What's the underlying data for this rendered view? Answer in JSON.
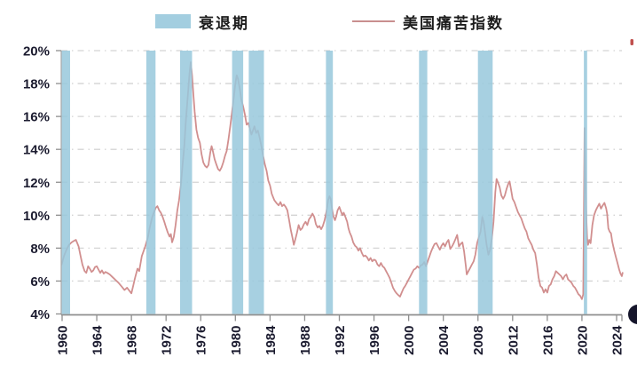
{
  "legend": {
    "recession_label": "衰退期",
    "series_label": "美国痛苦指数"
  },
  "colors": {
    "band": "#98c8dc",
    "band_opacity": 0.85,
    "line": "#d18f8f",
    "grid": "#d4d4d4",
    "axis": "#8f8f8f",
    "tick_text": "#1b1b2f",
    "top_right_clipped_mark": "#c0504d",
    "bottom_right_clipped_dot": "#15152b"
  },
  "chart_data": {
    "type": "line",
    "legend_position": "top-center",
    "grid": {
      "style": "dash-dot",
      "direction": "horizontal",
      "color": "#d4d4d4"
    },
    "x_axis": {
      "range": [
        1959.9,
        2024.8
      ],
      "tick_values": [
        1960,
        1964,
        1968,
        1972,
        1976,
        1980,
        1984,
        1988,
        1992,
        1996,
        2000,
        2004,
        2008,
        2012,
        2016,
        2020,
        2024
      ],
      "tick_labels": [
        "1960",
        "1964",
        "1968",
        "1972",
        "1976",
        "1980",
        "1984",
        "1988",
        "1992",
        "1996",
        "2000",
        "2004",
        "2008",
        "2012",
        "2016",
        "2020",
        "2024"
      ],
      "label_rotation_deg": -90
    },
    "y_axis": {
      "range": [
        4,
        20
      ],
      "unit": "%",
      "tick_values": [
        20,
        18,
        16,
        14,
        12,
        10,
        8,
        6,
        4
      ],
      "tick_labels": [
        "20%",
        "18%",
        "16%",
        "14%",
        "12%",
        "10%",
        "8%",
        "6%",
        "4%"
      ]
    },
    "recession_bands": {
      "label": "衰退期",
      "color": "#98c8dc",
      "intervals": [
        [
          1959.92,
          1960.92
        ],
        [
          1969.72,
          1970.78
        ],
        [
          1973.62,
          1975.0
        ],
        [
          1979.62,
          1980.9
        ],
        [
          1981.55,
          1983.3
        ],
        [
          1990.45,
          1991.25
        ],
        [
          2001.2,
          2002.15
        ],
        [
          2008.0,
          2009.7
        ],
        [
          2020.22,
          2020.6
        ]
      ]
    },
    "series": {
      "name": "美国痛苦指数",
      "color": "#d18f8f",
      "points": [
        [
          1959.95,
          7.0
        ],
        [
          1960.2,
          7.5
        ],
        [
          1960.5,
          7.9
        ],
        [
          1960.8,
          8.2
        ],
        [
          1961.1,
          8.35
        ],
        [
          1961.4,
          8.45
        ],
        [
          1961.6,
          8.5
        ],
        [
          1961.9,
          8.1
        ],
        [
          1962.1,
          7.6
        ],
        [
          1962.35,
          7.0
        ],
        [
          1962.6,
          6.6
        ],
        [
          1962.8,
          6.5
        ],
        [
          1963.0,
          6.9
        ],
        [
          1963.2,
          6.75
        ],
        [
          1963.4,
          6.55
        ],
        [
          1963.6,
          6.65
        ],
        [
          1963.8,
          6.85
        ],
        [
          1964.0,
          6.9
        ],
        [
          1964.2,
          6.7
        ],
        [
          1964.4,
          6.5
        ],
        [
          1964.6,
          6.65
        ],
        [
          1964.8,
          6.45
        ],
        [
          1965.0,
          6.55
        ],
        [
          1965.2,
          6.5
        ],
        [
          1965.5,
          6.4
        ],
        [
          1965.8,
          6.25
        ],
        [
          1966.0,
          6.15
        ],
        [
          1966.2,
          6.05
        ],
        [
          1966.5,
          5.9
        ],
        [
          1966.9,
          5.65
        ],
        [
          1967.2,
          5.45
        ],
        [
          1967.5,
          5.6
        ],
        [
          1967.7,
          5.45
        ],
        [
          1968.0,
          5.25
        ],
        [
          1968.2,
          5.7
        ],
        [
          1968.4,
          6.15
        ],
        [
          1968.7,
          6.75
        ],
        [
          1968.9,
          6.6
        ],
        [
          1969.2,
          7.5
        ],
        [
          1969.6,
          8.1
        ],
        [
          1969.9,
          8.65
        ],
        [
          1970.1,
          9.2
        ],
        [
          1970.4,
          9.9
        ],
        [
          1970.8,
          10.45
        ],
        [
          1971.0,
          10.55
        ],
        [
          1971.2,
          10.3
        ],
        [
          1971.4,
          10.15
        ],
        [
          1971.6,
          9.9
        ],
        [
          1971.8,
          9.6
        ],
        [
          1972.0,
          9.25
        ],
        [
          1972.2,
          8.95
        ],
        [
          1972.4,
          8.7
        ],
        [
          1972.55,
          8.85
        ],
        [
          1972.7,
          8.35
        ],
        [
          1972.9,
          8.7
        ],
        [
          1973.1,
          9.4
        ],
        [
          1973.3,
          10.3
        ],
        [
          1973.5,
          10.9
        ],
        [
          1973.7,
          11.8
        ],
        [
          1973.9,
          13.0
        ],
        [
          1974.1,
          14.2
        ],
        [
          1974.3,
          15.8
        ],
        [
          1974.5,
          17.2
        ],
        [
          1974.7,
          18.6
        ],
        [
          1974.85,
          19.3
        ],
        [
          1975.0,
          18.5
        ],
        [
          1975.15,
          17.4
        ],
        [
          1975.3,
          16.3
        ],
        [
          1975.5,
          15.2
        ],
        [
          1975.7,
          14.7
        ],
        [
          1975.9,
          14.4
        ],
        [
          1976.1,
          13.7
        ],
        [
          1976.3,
          13.2
        ],
        [
          1976.5,
          13.0
        ],
        [
          1976.7,
          12.9
        ],
        [
          1976.9,
          13.05
        ],
        [
          1977.1,
          13.8
        ],
        [
          1977.25,
          14.2
        ],
        [
          1977.4,
          13.9
        ],
        [
          1977.6,
          13.4
        ],
        [
          1977.8,
          13.1
        ],
        [
          1978.0,
          12.8
        ],
        [
          1978.2,
          12.7
        ],
        [
          1978.4,
          12.9
        ],
        [
          1978.6,
          13.2
        ],
        [
          1978.8,
          13.6
        ],
        [
          1979.0,
          13.9
        ],
        [
          1979.2,
          14.6
        ],
        [
          1979.4,
          15.4
        ],
        [
          1979.6,
          16.2
        ],
        [
          1979.8,
          17.1
        ],
        [
          1980.0,
          18.0
        ],
        [
          1980.15,
          18.5
        ],
        [
          1980.3,
          18.3
        ],
        [
          1980.5,
          17.7
        ],
        [
          1980.7,
          17.0
        ],
        [
          1980.9,
          16.6
        ],
        [
          1981.1,
          16.1
        ],
        [
          1981.3,
          15.5
        ],
        [
          1981.5,
          15.6
        ],
        [
          1981.7,
          15.2
        ],
        [
          1981.85,
          14.9
        ],
        [
          1982.0,
          15.1
        ],
        [
          1982.2,
          15.4
        ],
        [
          1982.4,
          15.0
        ],
        [
          1982.6,
          15.15
        ],
        [
          1982.8,
          14.7
        ],
        [
          1983.0,
          14.2
        ],
        [
          1983.2,
          13.6
        ],
        [
          1983.4,
          13.1
        ],
        [
          1983.6,
          12.7
        ],
        [
          1983.8,
          12.1
        ],
        [
          1984.0,
          11.8
        ],
        [
          1984.2,
          11.3
        ],
        [
          1984.5,
          10.9
        ],
        [
          1984.8,
          10.7
        ],
        [
          1985.0,
          10.6
        ],
        [
          1985.2,
          10.8
        ],
        [
          1985.4,
          10.55
        ],
        [
          1985.6,
          10.65
        ],
        [
          1985.8,
          10.5
        ],
        [
          1986.0,
          10.3
        ],
        [
          1986.2,
          9.7
        ],
        [
          1986.4,
          9.1
        ],
        [
          1986.6,
          8.6
        ],
        [
          1986.75,
          8.2
        ],
        [
          1986.9,
          8.5
        ],
        [
          1987.1,
          8.9
        ],
        [
          1987.3,
          9.4
        ],
        [
          1987.5,
          9.1
        ],
        [
          1987.7,
          9.2
        ],
        [
          1987.9,
          9.45
        ],
        [
          1988.1,
          9.6
        ],
        [
          1988.3,
          9.4
        ],
        [
          1988.5,
          9.75
        ],
        [
          1988.7,
          9.9
        ],
        [
          1988.9,
          10.1
        ],
        [
          1989.1,
          9.9
        ],
        [
          1989.3,
          9.45
        ],
        [
          1989.5,
          9.25
        ],
        [
          1989.7,
          9.35
        ],
        [
          1989.9,
          9.15
        ],
        [
          1990.1,
          9.35
        ],
        [
          1990.3,
          9.7
        ],
        [
          1990.5,
          10.2
        ],
        [
          1990.7,
          10.9
        ],
        [
          1990.85,
          11.15
        ],
        [
          1991.0,
          11.0
        ],
        [
          1991.15,
          10.4
        ],
        [
          1991.3,
          9.95
        ],
        [
          1991.5,
          9.7
        ],
        [
          1991.65,
          9.95
        ],
        [
          1991.8,
          10.3
        ],
        [
          1992.0,
          10.5
        ],
        [
          1992.2,
          10.2
        ],
        [
          1992.35,
          10.0
        ],
        [
          1992.5,
          10.15
        ],
        [
          1992.7,
          9.9
        ],
        [
          1992.9,
          9.6
        ],
        [
          1993.05,
          9.2
        ],
        [
          1993.2,
          8.95
        ],
        [
          1993.4,
          8.7
        ],
        [
          1993.6,
          8.35
        ],
        [
          1993.8,
          8.15
        ],
        [
          1994.0,
          8.05
        ],
        [
          1994.2,
          7.85
        ],
        [
          1994.4,
          8.0
        ],
        [
          1994.6,
          7.7
        ],
        [
          1994.8,
          7.5
        ],
        [
          1995.0,
          7.55
        ],
        [
          1995.2,
          7.45
        ],
        [
          1995.4,
          7.25
        ],
        [
          1995.6,
          7.4
        ],
        [
          1995.8,
          7.2
        ],
        [
          1996.0,
          7.3
        ],
        [
          1996.2,
          7.25
        ],
        [
          1996.4,
          7.0
        ],
        [
          1996.6,
          6.9
        ],
        [
          1996.8,
          7.1
        ],
        [
          1997.0,
          6.9
        ],
        [
          1997.2,
          6.8
        ],
        [
          1997.4,
          6.6
        ],
        [
          1997.6,
          6.4
        ],
        [
          1997.8,
          6.2
        ],
        [
          1998.0,
          5.9
        ],
        [
          1998.2,
          5.6
        ],
        [
          1998.4,
          5.4
        ],
        [
          1998.6,
          5.25
        ],
        [
          1998.8,
          5.15
        ],
        [
          1999.0,
          5.05
        ],
        [
          1999.2,
          5.3
        ],
        [
          1999.4,
          5.55
        ],
        [
          1999.6,
          5.7
        ],
        [
          1999.8,
          5.9
        ],
        [
          2000.0,
          6.1
        ],
        [
          2000.2,
          6.3
        ],
        [
          2000.4,
          6.5
        ],
        [
          2000.6,
          6.7
        ],
        [
          2000.8,
          6.75
        ],
        [
          2001.0,
          6.9
        ],
        [
          2001.2,
          6.8
        ],
        [
          2001.4,
          6.95
        ],
        [
          2001.6,
          7.0
        ],
        [
          2001.8,
          7.15
        ],
        [
          2002.0,
          6.9
        ],
        [
          2002.2,
          7.2
        ],
        [
          2002.4,
          7.5
        ],
        [
          2002.6,
          7.8
        ],
        [
          2002.8,
          8.05
        ],
        [
          2003.0,
          8.25
        ],
        [
          2003.2,
          8.3
        ],
        [
          2003.4,
          8.1
        ],
        [
          2003.6,
          7.9
        ],
        [
          2003.8,
          8.15
        ],
        [
          2004.0,
          8.3
        ],
        [
          2004.2,
          8.1
        ],
        [
          2004.4,
          8.35
        ],
        [
          2004.6,
          8.5
        ],
        [
          2004.8,
          7.95
        ],
        [
          2005.0,
          8.1
        ],
        [
          2005.2,
          8.3
        ],
        [
          2005.4,
          8.55
        ],
        [
          2005.6,
          8.8
        ],
        [
          2005.8,
          8.1
        ],
        [
          2006.0,
          8.25
        ],
        [
          2006.2,
          8.35
        ],
        [
          2006.4,
          7.8
        ],
        [
          2006.6,
          6.9
        ],
        [
          2006.7,
          6.4
        ],
        [
          2006.9,
          6.6
        ],
        [
          2007.1,
          6.8
        ],
        [
          2007.3,
          7.0
        ],
        [
          2007.5,
          7.2
        ],
        [
          2007.7,
          7.6
        ],
        [
          2007.9,
          8.3
        ],
        [
          2008.1,
          8.65
        ],
        [
          2008.3,
          9.0
        ],
        [
          2008.5,
          9.9
        ],
        [
          2008.65,
          9.6
        ],
        [
          2008.8,
          9.0
        ],
        [
          2009.0,
          8.2
        ],
        [
          2009.2,
          7.6
        ],
        [
          2009.4,
          7.9
        ],
        [
          2009.6,
          8.6
        ],
        [
          2009.8,
          9.6
        ],
        [
          2010.0,
          11.4
        ],
        [
          2010.15,
          12.2
        ],
        [
          2010.3,
          12.0
        ],
        [
          2010.5,
          11.7
        ],
        [
          2010.7,
          11.2
        ],
        [
          2010.9,
          11.0
        ],
        [
          2011.1,
          11.2
        ],
        [
          2011.3,
          11.6
        ],
        [
          2011.5,
          11.9
        ],
        [
          2011.65,
          12.05
        ],
        [
          2011.8,
          11.6
        ],
        [
          2012.0,
          11.0
        ],
        [
          2012.2,
          10.8
        ],
        [
          2012.4,
          10.5
        ],
        [
          2012.6,
          10.2
        ],
        [
          2012.8,
          10.0
        ],
        [
          2013.0,
          9.8
        ],
        [
          2013.2,
          9.5
        ],
        [
          2013.4,
          9.2
        ],
        [
          2013.6,
          9.0
        ],
        [
          2013.8,
          8.6
        ],
        [
          2014.0,
          8.4
        ],
        [
          2014.2,
          8.2
        ],
        [
          2014.4,
          7.9
        ],
        [
          2014.6,
          7.7
        ],
        [
          2014.8,
          7.0
        ],
        [
          2015.0,
          6.2
        ],
        [
          2015.2,
          5.7
        ],
        [
          2015.4,
          5.6
        ],
        [
          2015.6,
          5.3
        ],
        [
          2015.8,
          5.5
        ],
        [
          2016.0,
          5.3
        ],
        [
          2016.2,
          5.7
        ],
        [
          2016.4,
          5.8
        ],
        [
          2016.6,
          6.1
        ],
        [
          2016.8,
          6.3
        ],
        [
          2017.0,
          6.6
        ],
        [
          2017.2,
          6.5
        ],
        [
          2017.4,
          6.4
        ],
        [
          2017.6,
          6.3
        ],
        [
          2017.8,
          6.1
        ],
        [
          2018.0,
          6.3
        ],
        [
          2018.2,
          6.4
        ],
        [
          2018.4,
          6.1
        ],
        [
          2018.6,
          6.0
        ],
        [
          2018.8,
          5.9
        ],
        [
          2019.0,
          5.7
        ],
        [
          2019.2,
          5.6
        ],
        [
          2019.4,
          5.4
        ],
        [
          2019.6,
          5.2
        ],
        [
          2019.8,
          5.1
        ],
        [
          2020.0,
          4.9
        ],
        [
          2020.15,
          5.2
        ],
        [
          2020.3,
          15.3
        ],
        [
          2020.4,
          12.5
        ],
        [
          2020.5,
          10.0
        ],
        [
          2020.6,
          8.6
        ],
        [
          2020.7,
          8.2
        ],
        [
          2020.85,
          8.5
        ],
        [
          2021.0,
          8.3
        ],
        [
          2021.2,
          9.4
        ],
        [
          2021.4,
          10.0
        ],
        [
          2021.6,
          10.3
        ],
        [
          2021.8,
          10.5
        ],
        [
          2022.0,
          10.7
        ],
        [
          2022.2,
          10.4
        ],
        [
          2022.4,
          10.6
        ],
        [
          2022.6,
          10.75
        ],
        [
          2022.8,
          10.4
        ],
        [
          2022.9,
          10.1
        ],
        [
          2023.05,
          9.2
        ],
        [
          2023.2,
          9.0
        ],
        [
          2023.35,
          8.9
        ],
        [
          2023.5,
          8.4
        ],
        [
          2023.7,
          7.9
        ],
        [
          2023.9,
          7.5
        ],
        [
          2024.1,
          7.1
        ],
        [
          2024.3,
          6.7
        ],
        [
          2024.45,
          6.45
        ],
        [
          2024.6,
          6.3
        ],
        [
          2024.7,
          6.5
        ]
      ]
    }
  }
}
